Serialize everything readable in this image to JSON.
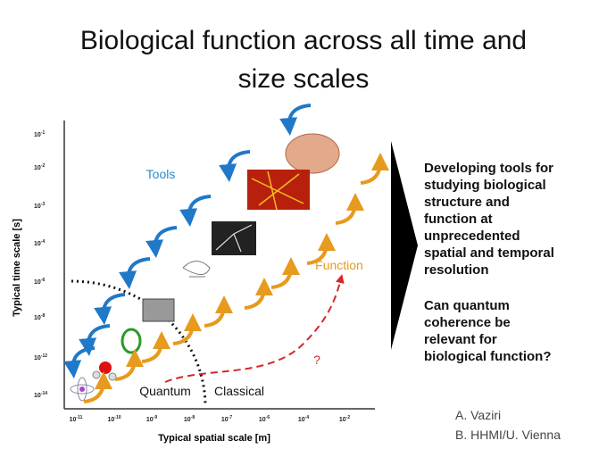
{
  "title": {
    "line1": "Biological function across all time and",
    "line2": "size scales"
  },
  "y_axis": {
    "label": "Typical time scale [s]",
    "ticks": [
      {
        "base": "10",
        "exp": "-1"
      },
      {
        "base": "10",
        "exp": "-2"
      },
      {
        "base": "10",
        "exp": "-3"
      },
      {
        "base": "10",
        "exp": "-4"
      },
      {
        "base": "10",
        "exp": "-6"
      },
      {
        "base": "10",
        "exp": "-8"
      },
      {
        "base": "10",
        "exp": "-12"
      },
      {
        "base": "10",
        "exp": "-14"
      }
    ]
  },
  "x_axis": {
    "label": "Typical spatial scale [m]",
    "ticks": [
      {
        "base": "10",
        "exp": "-11"
      },
      {
        "base": "10",
        "exp": "-10"
      },
      {
        "base": "10",
        "exp": "-9"
      },
      {
        "base": "10",
        "exp": "-8"
      },
      {
        "base": "10",
        "exp": "-7"
      },
      {
        "base": "10",
        "exp": "-6"
      },
      {
        "base": "10",
        "exp": "-4"
      },
      {
        "base": "10",
        "exp": "-2"
      }
    ]
  },
  "labels": {
    "tools": "Tools",
    "function": "Function",
    "quantum": "Quantum",
    "classical": "Classical",
    "question": "?"
  },
  "statements": [
    [
      "Developing tools for",
      "studying biological",
      "structure and",
      "function at",
      "unprecedented",
      "spatial and temporal",
      "resolution"
    ],
    [
      "Can quantum",
      "coherence be",
      "relevant for",
      "biological function?"
    ]
  ],
  "credits": [
    "A.  Vaziri",
    "B.  HHMI/U. Vienna"
  ]
}
